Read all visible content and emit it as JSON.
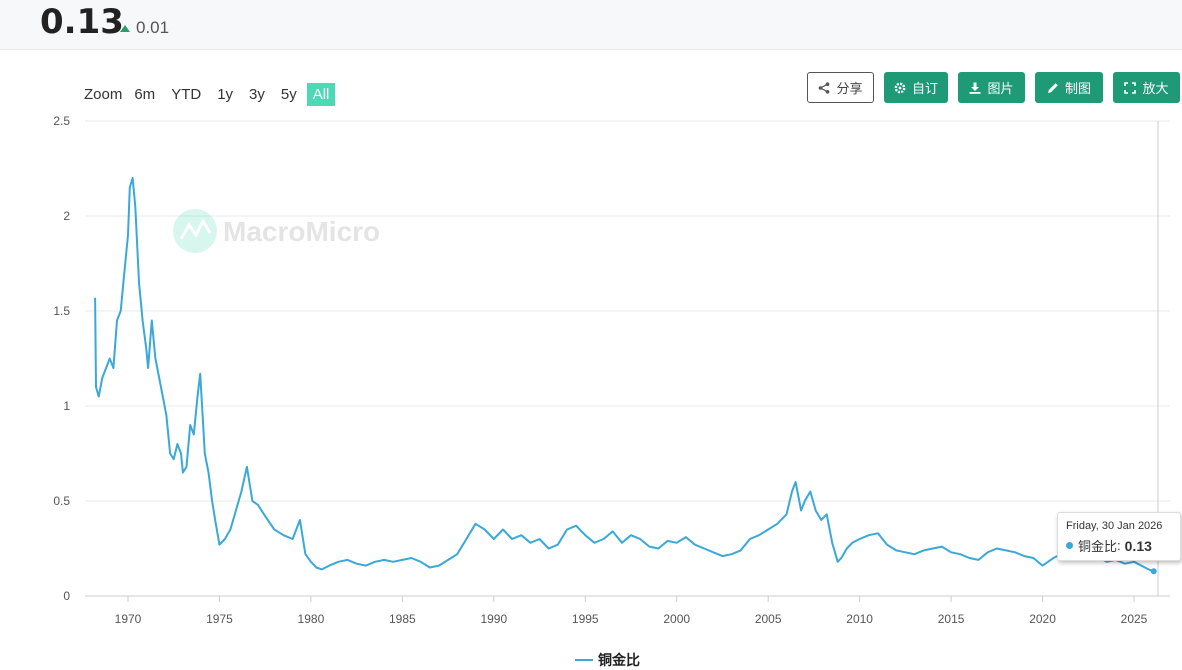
{
  "header": {
    "value": "0.13",
    "change": "0.01",
    "change_direction": "up",
    "change_color": "#2a9d6b"
  },
  "zoom": {
    "label": "Zoom",
    "buttons": [
      "6m",
      "YTD",
      "1y",
      "3y",
      "5y",
      "All"
    ],
    "active": "All"
  },
  "toolbar": {
    "share": "分享",
    "customize": "自订",
    "image": "图片",
    "draw": "制图",
    "enlarge": "放大"
  },
  "watermark": "MacroMicro",
  "tooltip": {
    "date": "Friday, 30 Jan 2026",
    "series": "铜金比",
    "value": "0.13"
  },
  "colors": {
    "line": "#3aa8d8",
    "accent": "#1e9a77",
    "zoom_active": "#4dd9b4"
  },
  "chart_data": {
    "type": "line",
    "title": "",
    "xlabel": "",
    "ylabel": "",
    "ylim": [
      0,
      2.5
    ],
    "yticks": [
      "0",
      "0.5",
      "1",
      "1.5",
      "2",
      "2.5"
    ],
    "xticks": [
      "1970",
      "1975",
      "1980",
      "1985",
      "1990",
      "1995",
      "2000",
      "2005",
      "2010",
      "2015",
      "2020",
      "2025"
    ],
    "grid": true,
    "legend": "bottom",
    "series": [
      {
        "name": "铜金比",
        "x": [
          1968.2,
          1968.25,
          1968.4,
          1968.6,
          1968.8,
          1969.0,
          1969.2,
          1969.4,
          1969.6,
          1969.8,
          1970.0,
          1970.1,
          1970.25,
          1970.4,
          1970.6,
          1970.8,
          1971.0,
          1971.1,
          1971.3,
          1971.5,
          1971.7,
          1971.9,
          1972.1,
          1972.3,
          1972.5,
          1972.7,
          1972.9,
          1973.0,
          1973.2,
          1973.4,
          1973.6,
          1973.8,
          1973.95,
          1974.2,
          1974.4,
          1974.6,
          1974.8,
          1975.0,
          1975.3,
          1975.6,
          1975.9,
          1976.2,
          1976.5,
          1976.8,
          1977.1,
          1977.5,
          1978.0,
          1978.5,
          1979.0,
          1979.4,
          1979.7,
          1980.0,
          1980.3,
          1980.6,
          1981.0,
          1981.5,
          1982.0,
          1982.5,
          1983.0,
          1983.5,
          1984.0,
          1984.5,
          1985.0,
          1985.5,
          1986.0,
          1986.5,
          1987.0,
          1987.5,
          1988.0,
          1988.5,
          1989.0,
          1989.5,
          1990.0,
          1990.5,
          1991.0,
          1991.5,
          1992.0,
          1992.5,
          1993.0,
          1993.5,
          1994.0,
          1994.5,
          1995.0,
          1995.5,
          1996.0,
          1996.5,
          1997.0,
          1997.5,
          1998.0,
          1998.5,
          1999.0,
          1999.5,
          2000.0,
          2000.5,
          2001.0,
          2001.5,
          2002.0,
          2002.5,
          2003.0,
          2003.5,
          2004.0,
          2004.5,
          2005.0,
          2005.5,
          2006.0,
          2006.3,
          2006.5,
          2006.8,
          2007.0,
          2007.3,
          2007.6,
          2007.9,
          2008.2,
          2008.5,
          2008.8,
          2009.0,
          2009.3,
          2009.6,
          2010.0,
          2010.5,
          2011.0,
          2011.5,
          2012.0,
          2012.5,
          2013.0,
          2013.5,
          2014.0,
          2014.5,
          2015.0,
          2015.5,
          2016.0,
          2016.5,
          2017.0,
          2017.5,
          2018.0,
          2018.5,
          2019.0,
          2019.5,
          2020.0,
          2020.3,
          2020.6,
          2021.0,
          2021.5,
          2022.0,
          2022.5,
          2023.0,
          2023.5,
          2024.0,
          2024.5,
          2025.0,
          2025.4,
          2025.8,
          2026.08
        ],
        "y": [
          1.57,
          1.1,
          1.05,
          1.15,
          1.2,
          1.25,
          1.2,
          1.45,
          1.5,
          1.7,
          1.9,
          2.15,
          2.2,
          2.05,
          1.65,
          1.45,
          1.3,
          1.2,
          1.45,
          1.25,
          1.15,
          1.05,
          0.95,
          0.75,
          0.72,
          0.8,
          0.75,
          0.65,
          0.68,
          0.9,
          0.85,
          1.05,
          1.17,
          0.75,
          0.65,
          0.5,
          0.38,
          0.27,
          0.3,
          0.35,
          0.45,
          0.55,
          0.68,
          0.5,
          0.48,
          0.42,
          0.35,
          0.32,
          0.3,
          0.4,
          0.22,
          0.18,
          0.15,
          0.14,
          0.16,
          0.18,
          0.19,
          0.17,
          0.16,
          0.18,
          0.19,
          0.18,
          0.19,
          0.2,
          0.18,
          0.15,
          0.16,
          0.19,
          0.22,
          0.3,
          0.38,
          0.35,
          0.3,
          0.35,
          0.3,
          0.32,
          0.28,
          0.3,
          0.25,
          0.27,
          0.35,
          0.37,
          0.32,
          0.28,
          0.3,
          0.34,
          0.28,
          0.32,
          0.3,
          0.26,
          0.25,
          0.29,
          0.28,
          0.31,
          0.27,
          0.25,
          0.23,
          0.21,
          0.22,
          0.24,
          0.3,
          0.32,
          0.35,
          0.38,
          0.43,
          0.55,
          0.6,
          0.45,
          0.5,
          0.55,
          0.45,
          0.4,
          0.43,
          0.28,
          0.18,
          0.2,
          0.25,
          0.28,
          0.3,
          0.32,
          0.33,
          0.27,
          0.24,
          0.23,
          0.22,
          0.24,
          0.25,
          0.26,
          0.23,
          0.22,
          0.2,
          0.19,
          0.23,
          0.25,
          0.24,
          0.23,
          0.21,
          0.2,
          0.16,
          0.18,
          0.2,
          0.22,
          0.2,
          0.2,
          0.22,
          0.21,
          0.18,
          0.19,
          0.17,
          0.18,
          0.16,
          0.14,
          0.13
        ]
      }
    ]
  }
}
